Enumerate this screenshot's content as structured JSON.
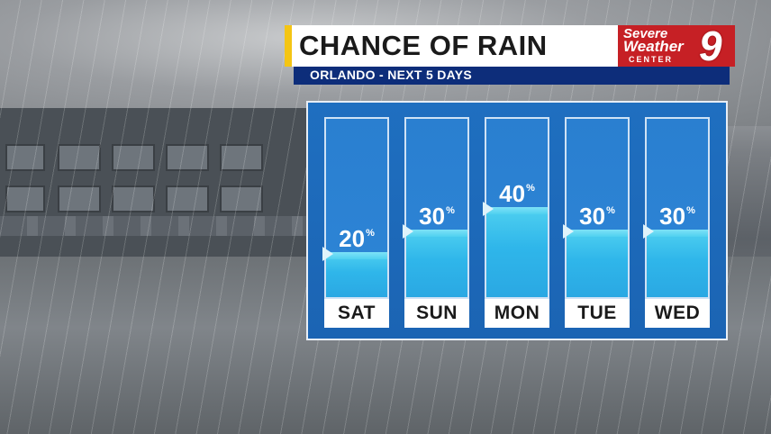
{
  "header": {
    "title": "CHANCE OF RAIN",
    "subtitle": "ORLANDO - NEXT 5 DAYS"
  },
  "logo": {
    "line1": "Severe",
    "line2": "Weather",
    "line3": "CENTER",
    "channel": "9"
  },
  "forecast": [
    {
      "day": "SAT",
      "value": "20",
      "unit": "%",
      "fraction": 0.2
    },
    {
      "day": "SUN",
      "value": "30",
      "unit": "%",
      "fraction": 0.3
    },
    {
      "day": "MON",
      "value": "40",
      "unit": "%",
      "fraction": 0.4
    },
    {
      "day": "TUE",
      "value": "30",
      "unit": "%",
      "fraction": 0.3
    },
    {
      "day": "WED",
      "value": "30",
      "unit": "%",
      "fraction": 0.3
    }
  ],
  "colors": {
    "accent": "#f4c514",
    "subbar": "#0d2d7a",
    "panel": "#1f6fc0",
    "water": "#4fd0f0",
    "logo": "#c62025"
  }
}
